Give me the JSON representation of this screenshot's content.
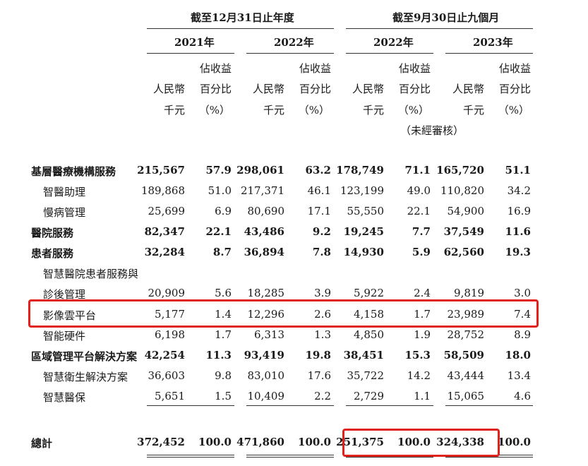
{
  "header": {
    "group_a": "截至12月31日止年度",
    "group_b": "截至9月30日止九個月",
    "years": [
      "2021年",
      "2022年",
      "2022年",
      "2023年"
    ],
    "col_rmb_line1": "人民幣",
    "col_rmb_line2": "千元",
    "col_pct_line0": "佔收益",
    "col_pct_line1": "百分比",
    "col_pct_line2": "（%）",
    "unaudited": "（未經審核）"
  },
  "rows": [
    {
      "label": "基層醫療機構服務",
      "bold": true,
      "values": [
        "215,567",
        "57.9",
        "298,061",
        "63.2",
        "178,749",
        "71.1",
        "165,720",
        "51.1"
      ]
    },
    {
      "label": "智醫助理",
      "bold": false,
      "values": [
        "189,868",
        "51.0",
        "217,371",
        "46.1",
        "123,199",
        "49.0",
        "110,820",
        "34.2"
      ]
    },
    {
      "label": "慢病管理",
      "bold": false,
      "values": [
        "25,699",
        "6.9",
        "80,690",
        "17.1",
        "55,550",
        "22.1",
        "54,900",
        "16.9"
      ]
    },
    {
      "label": "醫院服務",
      "bold": true,
      "values": [
        "82,347",
        "22.1",
        "43,486",
        "9.2",
        "19,245",
        "7.7",
        "37,549",
        "11.6"
      ]
    },
    {
      "label": "患者服務",
      "bold": true,
      "values": [
        "32,284",
        "8.7",
        "36,894",
        "7.8",
        "14,930",
        "5.9",
        "62,560",
        "19.3"
      ]
    },
    {
      "label": "智慧醫院患者服務與",
      "bold": false,
      "values": [
        "",
        "",
        "",
        "",
        "",
        "",
        "",
        ""
      ]
    },
    {
      "label": "診後管理",
      "bold": false,
      "values": [
        "20,909",
        "5.6",
        "18,285",
        "3.9",
        "5,922",
        "2.4",
        "9,819",
        "3.0"
      ]
    },
    {
      "label": "影像雲平台",
      "bold": false,
      "values": [
        "5,177",
        "1.4",
        "12,296",
        "2.6",
        "4,158",
        "1.7",
        "23,989",
        "7.4"
      ]
    },
    {
      "label": "智能硬件",
      "bold": false,
      "values": [
        "6,198",
        "1.7",
        "6,313",
        "1.3",
        "4,850",
        "1.9",
        "28,752",
        "8.9"
      ]
    },
    {
      "label": "區域管理平台解決方案",
      "bold": true,
      "values": [
        "42,254",
        "11.3",
        "93,419",
        "19.8",
        "38,451",
        "15.3",
        "58,509",
        "18.0"
      ]
    },
    {
      "label": "智慧衛生解決方案",
      "bold": false,
      "values": [
        "36,603",
        "9.8",
        "83,010",
        "17.6",
        "35,722",
        "14.2",
        "43,444",
        "13.4"
      ]
    },
    {
      "label": "智慧醫保",
      "bold": false,
      "values": [
        "5,651",
        "1.5",
        "10,409",
        "2.2",
        "2,729",
        "1.1",
        "15,065",
        "4.6"
      ]
    }
  ],
  "total": {
    "label": "總計",
    "values": [
      "372,452",
      "100.0",
      "471,860",
      "100.0",
      "251,375",
      "100.0",
      "324,338",
      "100.0"
    ]
  },
  "colors": {
    "highlight": "#e0221b",
    "text": "#1a1a1a"
  }
}
